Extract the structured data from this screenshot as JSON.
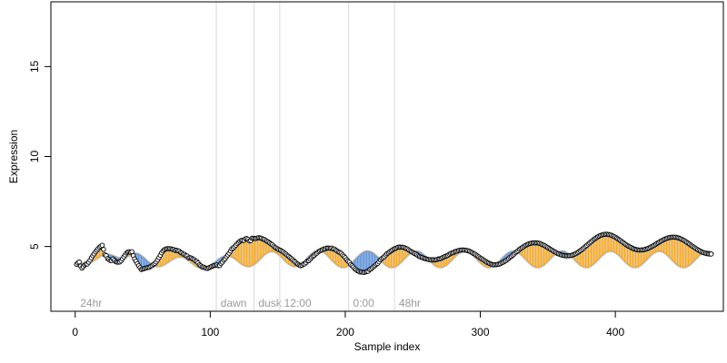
{
  "chart_data": {
    "type": "scatter",
    "title": "",
    "xlabel": "Sample index",
    "ylabel": "Expression",
    "xlim": [
      -18,
      480
    ],
    "ylim": [
      1.4,
      18.6
    ],
    "x_ticks": [
      0,
      100,
      200,
      300,
      400
    ],
    "y_ticks": [
      5,
      10,
      15
    ],
    "grid": false,
    "legend": "none",
    "sections": [
      {
        "label": "24hr",
        "start": 1
      },
      {
        "label": "dawn",
        "start": 105
      },
      {
        "label": "dusk",
        "start": 133
      },
      {
        "label": "12:00",
        "start": 152
      },
      {
        "label": "0:00",
        "start": 203
      },
      {
        "label": "48hr",
        "start": 237
      }
    ],
    "observed": [
      4.01,
      4.09,
      4.14,
      3.91,
      3.8,
      3.88,
      3.97,
      4.02,
      4.03,
      4.13,
      4.24,
      4.37,
      4.49,
      4.59,
      4.7,
      4.79,
      4.88,
      4.96,
      5.02,
      5.07,
      4.84,
      4.54,
      4.49,
      4.33,
      4.28,
      4.22,
      4.22,
      4.31,
      4.23,
      4.16,
      4.13,
      4.13,
      4.14,
      4.2,
      4.31,
      4.42,
      4.53,
      4.64,
      4.69,
      4.71,
      4.68,
      4.71,
      4.49,
      4.31,
      4.18,
      4.05,
      3.93,
      3.82,
      3.72,
      3.75,
      3.77,
      3.8,
      3.82,
      3.84,
      3.85,
      3.9,
      3.94,
      4.01,
      4.06,
      4.14,
      4.25,
      4.38,
      4.51,
      4.65,
      4.75,
      4.82,
      4.86,
      4.88,
      4.88,
      4.88,
      4.87,
      4.84,
      4.83,
      4.78,
      4.79,
      4.76,
      4.74,
      4.67,
      4.64,
      4.58,
      4.56,
      4.49,
      4.47,
      4.37,
      4.38,
      4.36,
      4.31,
      4.27,
      4.2,
      4.17,
      4.09,
      3.98,
      3.93,
      3.87,
      3.86,
      3.82,
      3.79,
      3.78,
      3.82,
      3.85,
      3.89,
      3.92,
      3.94,
      3.96,
      3.98,
      3.93,
      3.94,
      4.05,
      4.13,
      4.24,
      4.31,
      4.43,
      4.53,
      4.63,
      4.75,
      4.86,
      4.92,
      4.99,
      5.07,
      5.16,
      5.23,
      5.29,
      5.34,
      5.34,
      5.34,
      5.43,
      5.44,
      5.4,
      5.31,
      5.33,
      5.46,
      5.46,
      5.45,
      5.45,
      5.48,
      5.49,
      5.47,
      5.46,
      5.41,
      5.39,
      5.34,
      5.29,
      5.26,
      5.2,
      5.14,
      5.1,
      5.02,
      4.95,
      4.91,
      4.86,
      4.82,
      4.79,
      4.74,
      4.7,
      4.63,
      4.58,
      4.51,
      4.46,
      4.39,
      4.33,
      4.27,
      4.2,
      4.14,
      4.06,
      4.02,
      3.96,
      3.93,
      3.96,
      4.02,
      4.03,
      4.1,
      4.19,
      4.21,
      4.29,
      4.38,
      4.45,
      4.5,
      4.58,
      4.63,
      4.7,
      4.75,
      4.79,
      4.82,
      4.87,
      4.86,
      4.91,
      4.91,
      4.91,
      4.9,
      4.91,
      4.86,
      4.86,
      4.8,
      4.75,
      4.7,
      4.67,
      4.62,
      4.53,
      4.46,
      4.38,
      4.27,
      4.19,
      4.12,
      4.0,
      3.93,
      3.86,
      3.77,
      3.71,
      3.65,
      3.62,
      3.58,
      3.59,
      3.57,
      3.56,
      3.59,
      3.61,
      3.62,
      3.72,
      3.75,
      3.82,
      3.88,
      3.94,
      4.01,
      4.06,
      4.15,
      4.26,
      4.33,
      4.38,
      4.44,
      4.53,
      4.6,
      4.65,
      4.71,
      4.76,
      4.81,
      4.86,
      4.89,
      4.92,
      4.96,
      4.97,
      4.96,
      4.96,
      4.95,
      4.93,
      4.89,
      4.86,
      4.81,
      4.76,
      4.71,
      4.67,
      4.62,
      4.59,
      4.54,
      4.48,
      4.44,
      4.41,
      4.39,
      4.35,
      4.33,
      4.31,
      4.29,
      4.27,
      4.27,
      4.25,
      4.27,
      4.25,
      4.26,
      4.28,
      4.31,
      4.31,
      4.34,
      4.38,
      4.42,
      4.45,
      4.48,
      4.51,
      4.56,
      4.61,
      4.64,
      4.66,
      4.71,
      4.73,
      4.75,
      4.78,
      4.8,
      4.8,
      4.81,
      4.8,
      4.8,
      4.78,
      4.76,
      4.74,
      4.7,
      4.66,
      4.61,
      4.58,
      4.52,
      4.47,
      4.42,
      4.36,
      4.32,
      4.27,
      4.22,
      4.17,
      4.12,
      4.09,
      4.05,
      4.02,
      4.0,
      3.98,
      3.99,
      3.99,
      4.01,
      4.02,
      4.05,
      4.1,
      4.13,
      4.18,
      4.22,
      4.28,
      4.33,
      4.4,
      4.45,
      4.52,
      4.58,
      4.65,
      4.71,
      4.77,
      4.84,
      4.89,
      4.94,
      4.99,
      5.04,
      5.08,
      5.12,
      5.15,
      5.17,
      5.19,
      5.2,
      5.21,
      5.2,
      5.2,
      5.19,
      5.17,
      5.14,
      5.1,
      5.07,
      5.03,
      4.98,
      4.94,
      4.89,
      4.84,
      4.8,
      4.75,
      4.71,
      4.67,
      4.62,
      4.59,
      4.56,
      4.53,
      4.51,
      4.5,
      4.48,
      4.48,
      4.48,
      4.49,
      4.5,
      4.52,
      4.55,
      4.58,
      4.61,
      4.66,
      4.71,
      4.77,
      4.82,
      4.88,
      4.94,
      5.01,
      5.07,
      5.14,
      5.2,
      5.26,
      5.33,
      5.39,
      5.44,
      5.49,
      5.54,
      5.58,
      5.62,
      5.64,
      5.66,
      5.68,
      5.68,
      5.68,
      5.67,
      5.65,
      5.63,
      5.59,
      5.56,
      5.52,
      5.47,
      5.42,
      5.37,
      5.32,
      5.26,
      5.21,
      5.15,
      5.1,
      5.05,
      5.01,
      4.97,
      4.93,
      4.89,
      4.86,
      4.84,
      4.82,
      4.81,
      4.8,
      4.81,
      4.81,
      4.82,
      4.84,
      4.86,
      4.89,
      4.92,
      4.96,
      5.0,
      5.04,
      5.08,
      5.13,
      5.18,
      5.22,
      5.27,
      5.31,
      5.35,
      5.39,
      5.42,
      5.45,
      5.48,
      5.5,
      5.51,
      5.52,
      5.52,
      5.52,
      5.51,
      5.49,
      5.47,
      5.44,
      5.41,
      5.37,
      5.33,
      5.28,
      5.23,
      5.18,
      5.13,
      5.07,
      5.02,
      4.97,
      4.92,
      4.87,
      4.82,
      4.78,
      4.74,
      4.7,
      4.67,
      4.64,
      4.62,
      4.6,
      4.59,
      4.58,
      4.58
    ],
    "fitted": [
      3.95,
      3.98,
      4.01,
      4.03,
      4.04,
      4.05,
      4.06,
      4.07,
      4.08,
      4.1,
      4.12,
      4.15,
      4.18,
      4.22,
      4.27,
      4.32,
      4.37,
      4.42,
      4.47,
      4.51,
      4.54,
      4.56,
      4.57,
      4.57,
      4.56,
      4.54,
      4.52,
      4.49,
      4.46,
      4.43,
      4.4,
      4.38,
      4.36,
      4.35,
      4.35,
      4.36,
      4.38,
      4.41,
      4.45,
      4.49,
      4.53,
      4.57,
      4.6,
      4.62,
      4.62,
      4.61,
      4.58,
      4.54,
      4.49,
      4.43,
      4.37,
      4.3,
      4.23,
      4.16,
      4.1,
      4.04,
      3.99,
      3.95,
      3.92,
      3.9,
      3.89,
      3.89,
      3.9,
      3.92,
      3.95,
      3.99,
      4.03,
      4.08,
      4.13,
      4.18,
      4.23,
      4.28,
      4.32,
      4.36,
      4.39,
      4.41,
      4.42,
      4.42,
      4.41,
      4.39,
      4.36,
      4.32,
      4.27,
      4.22,
      4.16,
      4.1,
      4.04,
      3.98,
      3.93,
      3.88,
      3.84,
      3.81,
      3.79,
      3.78,
      3.78,
      3.79,
      3.81,
      3.84,
      3.88,
      3.93,
      3.98,
      4.04,
      4.1,
      4.16,
      4.22,
      4.28,
      4.33,
      4.38,
      4.42,
      4.45,
      4.47,
      4.48,
      4.48,
      4.47,
      4.45,
      4.42,
      4.38,
      4.33,
      4.28,
      4.22,
      4.16,
      4.1,
      4.04,
      3.99,
      3.95,
      3.92,
      3.9,
      3.89,
      3.89,
      3.91,
      3.94,
      3.98,
      4.03,
      4.09,
      4.16,
      4.23,
      4.31,
      4.39,
      4.46,
      4.53,
      4.59,
      4.64,
      4.68,
      4.71,
      4.72,
      4.72,
      4.71,
      4.68,
      4.64,
      4.59,
      4.53,
      4.46,
      4.39,
      4.31,
      4.23,
      4.16,
      4.09,
      4.03,
      3.98,
      3.94,
      3.91,
      3.89,
      3.89,
      3.9,
      3.92,
      3.96,
      4.01,
      4.07,
      4.14,
      4.21,
      4.29,
      4.37,
      4.45,
      4.52,
      4.59,
      4.65,
      4.7,
      4.74,
      4.76,
      4.77,
      4.77,
      4.75,
      4.72,
      4.68,
      4.62,
      4.56,
      4.49,
      4.41,
      4.33,
      4.25,
      4.17,
      4.1,
      4.03,
      3.97,
      3.92,
      3.88,
      3.85,
      3.84,
      3.84,
      3.85,
      3.88,
      3.92,
      3.97,
      4.03,
      4.1,
      4.17,
      4.25,
      4.33,
      4.41,
      4.48,
      4.55,
      4.61,
      4.66,
      4.7,
      4.73,
      4.74,
      4.74,
      4.73,
      4.7,
      4.66,
      4.61,
      4.55,
      4.48,
      4.41,
      4.33,
      4.25,
      4.17,
      4.1,
      4.03,
      3.97,
      3.92,
      3.88,
      3.85,
      3.84,
      3.84,
      3.85,
      3.88,
      3.92,
      3.97,
      4.03,
      4.1,
      4.17,
      4.25,
      4.33,
      4.41,
      4.48,
      4.55,
      4.61,
      4.66,
      4.7,
      4.73,
      4.74,
      4.74,
      4.73,
      4.7,
      4.66,
      4.61,
      4.55,
      4.48,
      4.41,
      4.33,
      4.25,
      4.17,
      4.1,
      4.03,
      3.97,
      3.92,
      3.88,
      3.85,
      3.84,
      3.84,
      3.85,
      3.88,
      3.92,
      3.97,
      4.03,
      4.1,
      4.17,
      4.25,
      4.33,
      4.41,
      4.48,
      4.55,
      4.61,
      4.66,
      4.7,
      4.73,
      4.74,
      4.74,
      4.73,
      4.7,
      4.66,
      4.61,
      4.55,
      4.48,
      4.41,
      4.33,
      4.25,
      4.17,
      4.1,
      4.03,
      3.97,
      3.92,
      3.88,
      3.85,
      3.84,
      3.84,
      3.85,
      3.88,
      3.92,
      3.97,
      4.03,
      4.1,
      4.17,
      4.25,
      4.33,
      4.41,
      4.48,
      4.55,
      4.61,
      4.66,
      4.7,
      4.73,
      4.74,
      4.74,
      4.73,
      4.7,
      4.66,
      4.61,
      4.55,
      4.48,
      4.41,
      4.33,
      4.25,
      4.17,
      4.1,
      4.03,
      3.97,
      3.92,
      3.88,
      3.85,
      3.84,
      3.84,
      3.85,
      3.88,
      3.92,
      3.97,
      4.03,
      4.1,
      4.17,
      4.25,
      4.33,
      4.41,
      4.48,
      4.55,
      4.61,
      4.66,
      4.7,
      4.73,
      4.74,
      4.74,
      4.73,
      4.7,
      4.66,
      4.61,
      4.55,
      4.48,
      4.41,
      4.33,
      4.25,
      4.17,
      4.1,
      4.03,
      3.97,
      3.92,
      3.88,
      3.85,
      3.84,
      3.84,
      3.85,
      3.88,
      3.92,
      3.97,
      4.03,
      4.1,
      4.17,
      4.25,
      4.33,
      4.41,
      4.48,
      4.55,
      4.61,
      4.66,
      4.7,
      4.73,
      4.74,
      4.74,
      4.73,
      4.7,
      4.66,
      4.61,
      4.55,
      4.48,
      4.41,
      4.33,
      4.25,
      4.17,
      4.1,
      4.03,
      3.97,
      3.92,
      3.88,
      3.85,
      3.84,
      3.84,
      3.85,
      3.88,
      3.92,
      3.97,
      4.03,
      4.1,
      4.17,
      4.25,
      4.33,
      4.41,
      4.48,
      4.55,
      4.61,
      4.66,
      4.7,
      4.73,
      4.74,
      4.74,
      4.73,
      4.7,
      4.66,
      4.61,
      4.55,
      4.48,
      4.41,
      4.33,
      4.25,
      4.17,
      4.1,
      4.03,
      3.97,
      3.92,
      3.88,
      3.85,
      3.84,
      3.84,
      3.85,
      3.88,
      3.92,
      3.97,
      4.03,
      4.1,
      4.17,
      4.25,
      4.33,
      4.41,
      4.48,
      4.55,
      4.61,
      4.66,
      4.7,
      4.73,
      4.74,
      4.74,
      4.73,
      4.7,
      4.66,
      4.61
    ],
    "colors": {
      "above_fit": "#f0a830",
      "below_fit": "#5b8fd6",
      "fit_line": "#bdbdbd",
      "section_line": "#d9d9d9",
      "section_label": "#9a9a9a",
      "point_fill": "#ffffff",
      "point_edge": "#000000",
      "axis": "#000000"
    }
  }
}
